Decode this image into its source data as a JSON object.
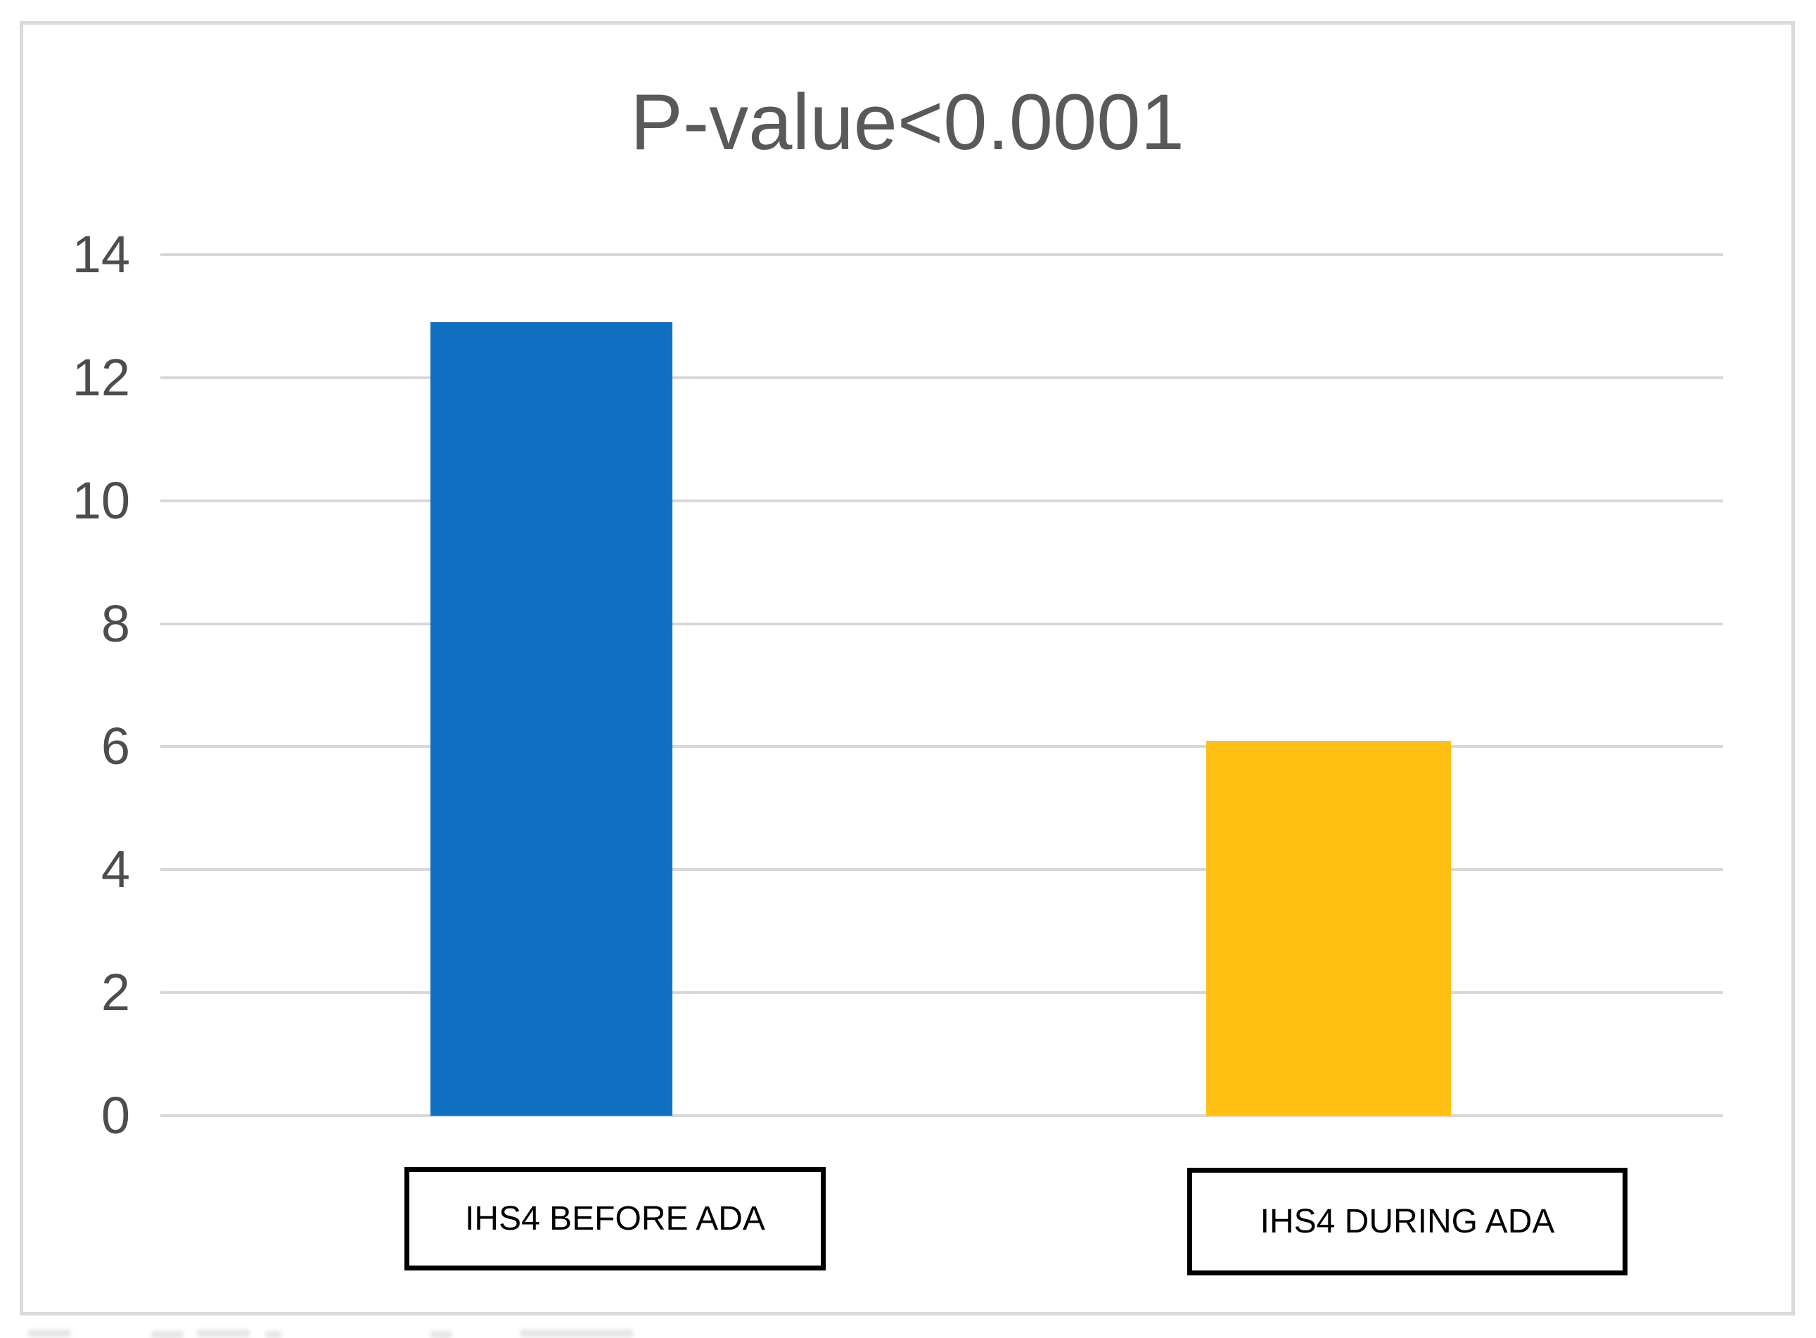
{
  "chart_data": {
    "type": "bar",
    "title": "P-value<0.0001",
    "categories": [
      "IHS4 BEFORE ADA",
      "IHS4 DURING ADA"
    ],
    "values": [
      12.9,
      6.1
    ],
    "bar_colors": [
      "#0f70c2",
      "#ffc013"
    ],
    "xlabel": "",
    "ylabel": "",
    "ylim": [
      0,
      14
    ],
    "yticks": [
      0,
      2,
      4,
      6,
      8,
      10,
      12,
      14
    ],
    "grid": "horizontal gridlines on, light gray",
    "legend": "none"
  },
  "colors": {
    "title_text": "#595959",
    "tick_text": "#4d4d4d",
    "gridline": "#d8d8d8",
    "frame_border": "#dadada",
    "category_box_border": "#000000",
    "category_text": "#000000",
    "background": "#ffffff"
  }
}
